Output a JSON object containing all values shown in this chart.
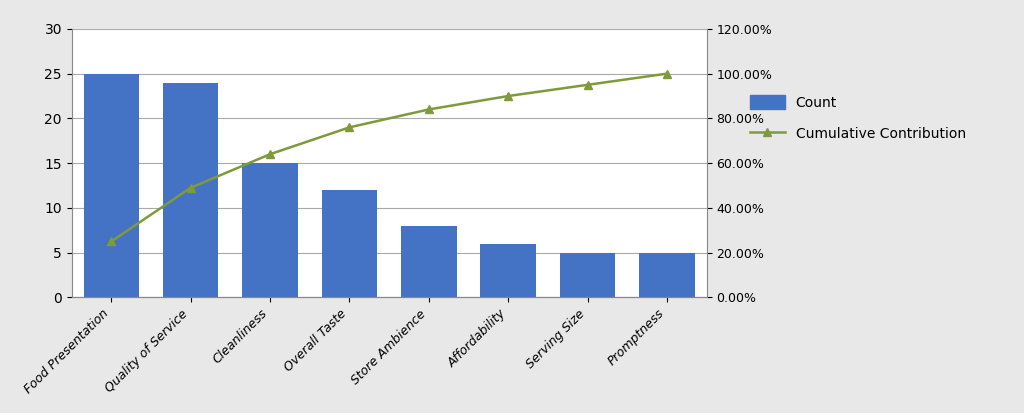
{
  "categories": [
    "Food Presentation",
    "Quality of Service",
    "Cleanliness",
    "Overall Taste",
    "Store Ambience",
    "Affordability",
    "Serving Size",
    "Promptness"
  ],
  "counts": [
    25,
    24,
    15,
    12,
    8,
    6,
    5,
    5
  ],
  "cumulative_pct": [
    0.25,
    0.49,
    0.64,
    0.76,
    0.84,
    0.9,
    0.95,
    1.0
  ],
  "bar_color": "#4472C4",
  "line_color": "#7F9A3A",
  "marker": "^",
  "ylim_left": [
    0,
    30
  ],
  "ylim_right": [
    0.0,
    1.2
  ],
  "yticks_left": [
    0,
    5,
    10,
    15,
    20,
    25,
    30
  ],
  "yticks_right": [
    0.0,
    0.2,
    0.4,
    0.6,
    0.8,
    1.0,
    1.2
  ],
  "legend_count_label": "Count",
  "legend_line_label": "Cumulative Contribution",
  "background_color": "#e8e8e8",
  "plot_background": "#ffffff",
  "grid_color": "#aaaaaa",
  "figure_size": [
    10.24,
    4.13
  ],
  "dpi": 100
}
